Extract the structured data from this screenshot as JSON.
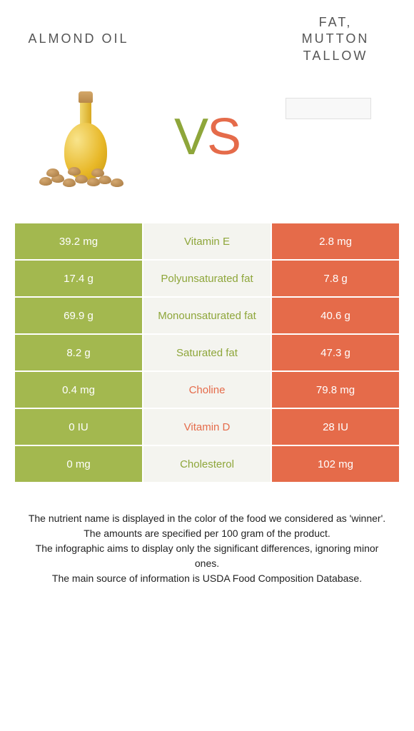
{
  "titles": {
    "left": "ALMOND OIL",
    "right": "FAT,\nMUTTON\nTALLOW"
  },
  "vs": {
    "v": "V",
    "s": "S"
  },
  "colors": {
    "green_bg": "#a3b84f",
    "green_text": "#8ea63a",
    "orange_bg": "#e56b4a",
    "orange_text": "#e56b4a",
    "mid_bg": "#f4f4ef",
    "white": "#ffffff"
  },
  "rows": [
    {
      "left": "39.2 mg",
      "label": "Vitamin E",
      "right": "2.8 mg",
      "winner": "left"
    },
    {
      "left": "17.4 g",
      "label": "Polyunsaturated fat",
      "right": "7.8 g",
      "winner": "left"
    },
    {
      "left": "69.9 g",
      "label": "Monounsaturated fat",
      "right": "40.6 g",
      "winner": "left"
    },
    {
      "left": "8.2 g",
      "label": "Saturated fat",
      "right": "47.3 g",
      "winner": "left"
    },
    {
      "left": "0.4 mg",
      "label": "Choline",
      "right": "79.8 mg",
      "winner": "right"
    },
    {
      "left": "0 IU",
      "label": "Vitamin D",
      "right": "28 IU",
      "winner": "right"
    },
    {
      "left": "0 mg",
      "label": "Cholesterol",
      "right": "102 mg",
      "winner": "left"
    }
  ],
  "footer": [
    "The nutrient name is displayed in the color of the food we considered as 'winner'.",
    "The amounts are specified per 100 gram of the product.",
    "The infographic aims to display only the significant differences, ignoring minor ones.",
    "The main source of information is USDA Food Composition Database."
  ]
}
